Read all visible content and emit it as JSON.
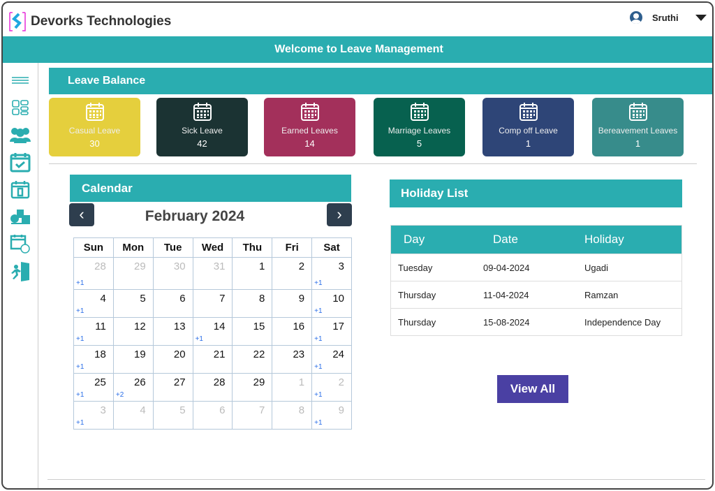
{
  "header": {
    "brand": "Devorks Technologies",
    "user": "Sruthi"
  },
  "banner": {
    "title": "Welcome to Leave Management"
  },
  "sidebar": {
    "items": [
      "menu-icon",
      "dashboard-icon",
      "team-icon",
      "calendar-check-icon",
      "leave-exit-icon",
      "payroll-icon",
      "schedule-icon",
      "logout-icon"
    ]
  },
  "leave_balance": {
    "title": "Leave Balance",
    "cards": [
      {
        "label": "Casual Leave",
        "value": "30",
        "color": "#e5cf3d"
      },
      {
        "label": "Sick Leave",
        "value": "42",
        "color": "#1b3333"
      },
      {
        "label": "Earned Leaves",
        "value": "14",
        "color": "#a3305b"
      },
      {
        "label": "Marriage Leaves",
        "value": "5",
        "color": "#07614f"
      },
      {
        "label": "Comp off Leave",
        "value": "1",
        "color": "#2e4577"
      },
      {
        "label": "Bereavement Leaves",
        "value": "1",
        "color": "#378c8b"
      }
    ]
  },
  "calendar": {
    "title": "Calendar",
    "month": "February 2024",
    "prev": "‹",
    "next": "›",
    "weekdays": [
      "Sun",
      "Mon",
      "Tue",
      "Wed",
      "Thu",
      "Fri",
      "Sat"
    ],
    "weeks": [
      [
        {
          "d": "28",
          "m": true,
          "x": "+1"
        },
        {
          "d": "29",
          "m": true
        },
        {
          "d": "30",
          "m": true
        },
        {
          "d": "31",
          "m": true
        },
        {
          "d": "1"
        },
        {
          "d": "2"
        },
        {
          "d": "3",
          "x": "+1"
        }
      ],
      [
        {
          "d": "4",
          "x": "+1"
        },
        {
          "d": "5"
        },
        {
          "d": "6"
        },
        {
          "d": "7"
        },
        {
          "d": "8"
        },
        {
          "d": "9"
        },
        {
          "d": "10",
          "x": "+1"
        }
      ],
      [
        {
          "d": "11",
          "x": "+1"
        },
        {
          "d": "12"
        },
        {
          "d": "13"
        },
        {
          "d": "14",
          "x": "+1"
        },
        {
          "d": "15"
        },
        {
          "d": "16"
        },
        {
          "d": "17",
          "x": "+1"
        }
      ],
      [
        {
          "d": "18",
          "x": "+1"
        },
        {
          "d": "19"
        },
        {
          "d": "20"
        },
        {
          "d": "21"
        },
        {
          "d": "22"
        },
        {
          "d": "23"
        },
        {
          "d": "24",
          "x": "+1"
        }
      ],
      [
        {
          "d": "25",
          "x": "+1"
        },
        {
          "d": "26",
          "x": "+2"
        },
        {
          "d": "27"
        },
        {
          "d": "28"
        },
        {
          "d": "29"
        },
        {
          "d": "1",
          "m": true
        },
        {
          "d": "2",
          "m": true,
          "x": "+1"
        }
      ],
      [
        {
          "d": "3",
          "m": true,
          "x": "+1"
        },
        {
          "d": "4",
          "m": true
        },
        {
          "d": "5",
          "m": true
        },
        {
          "d": "6",
          "m": true
        },
        {
          "d": "7",
          "m": true
        },
        {
          "d": "8",
          "m": true
        },
        {
          "d": "9",
          "m": true,
          "x": "+1"
        }
      ]
    ]
  },
  "holidays": {
    "title": "Holiday List",
    "columns": [
      "Day",
      "Date",
      "Holiday"
    ],
    "rows": [
      [
        "Tuesday",
        "09-04-2024",
        "Ugadi"
      ],
      [
        "Thursday",
        "11-04-2024",
        "Ramzan"
      ],
      [
        "Thursday",
        "15-08-2024",
        "Independence Day"
      ]
    ],
    "view_all": "View All"
  },
  "colors": {
    "teal": "#2aadb0",
    "button": "#4a40a3",
    "icon": "#2aadb0"
  }
}
